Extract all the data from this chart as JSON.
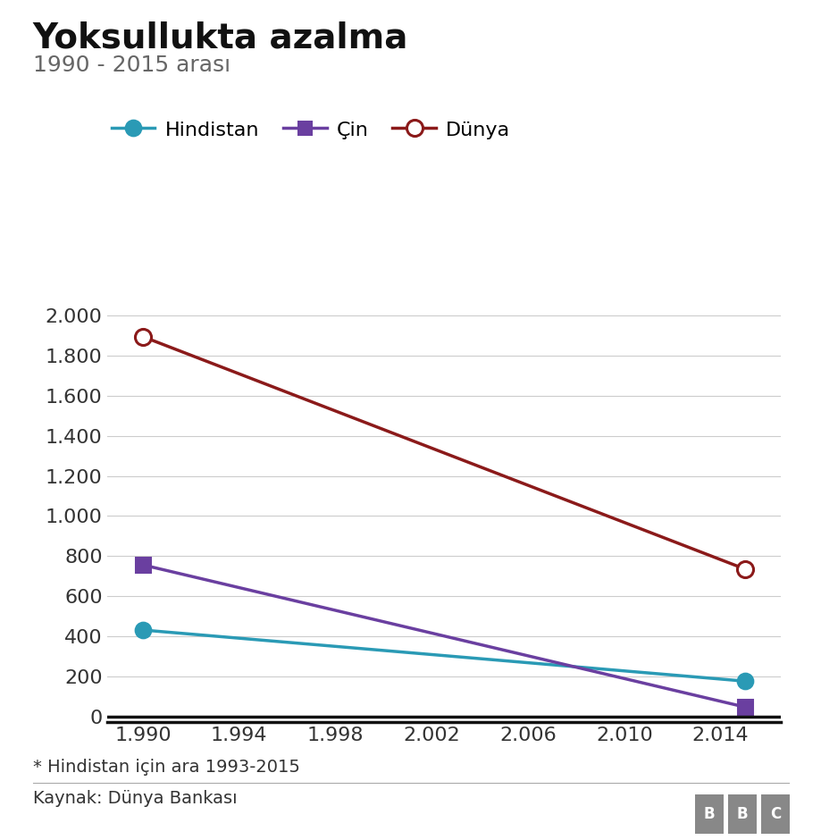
{
  "title": "Yoksullukta azalma",
  "subtitle": "1990 - 2015 arası",
  "footnote": "* Hindistan için ara 1993-2015",
  "source": "Kaynak: Dünya Bankası",
  "series": [
    {
      "label": "Hindistan",
      "x": [
        1990,
        2015
      ],
      "y": [
        431,
        176
      ],
      "color": "#2a9ab5",
      "marker": "o",
      "marker_filled": true,
      "linewidth": 2.5,
      "markersize": 12
    },
    {
      "label": "Çin",
      "x": [
        1990,
        2015
      ],
      "y": [
        756,
        47
      ],
      "color": "#6a3fa0",
      "marker": "s",
      "marker_filled": true,
      "linewidth": 2.5,
      "markersize": 11
    },
    {
      "label": "Dünya",
      "x": [
        1990,
        2015
      ],
      "y": [
        1895,
        736
      ],
      "color": "#8b1a1a",
      "marker": "o",
      "marker_filled": false,
      "linewidth": 2.5,
      "markersize": 13
    }
  ],
  "xlim": [
    1988.5,
    2016.5
  ],
  "ylim": [
    -30,
    2150
  ],
  "xticks": [
    1990,
    1994,
    1998,
    2002,
    2006,
    2010,
    2014
  ],
  "yticks": [
    0,
    200,
    400,
    600,
    800,
    1000,
    1200,
    1400,
    1600,
    1800,
    2000
  ],
  "title_fontsize": 28,
  "subtitle_fontsize": 18,
  "tick_fontsize": 16,
  "legend_fontsize": 16,
  "footnote_fontsize": 14,
  "source_fontsize": 14,
  "background_color": "#ffffff",
  "grid_color": "#cccccc",
  "axis_color": "#333333",
  "subtitle_color": "#666666",
  "footnote_color": "#333333",
  "source_color": "#333333",
  "bbc_box_color": "#888888"
}
